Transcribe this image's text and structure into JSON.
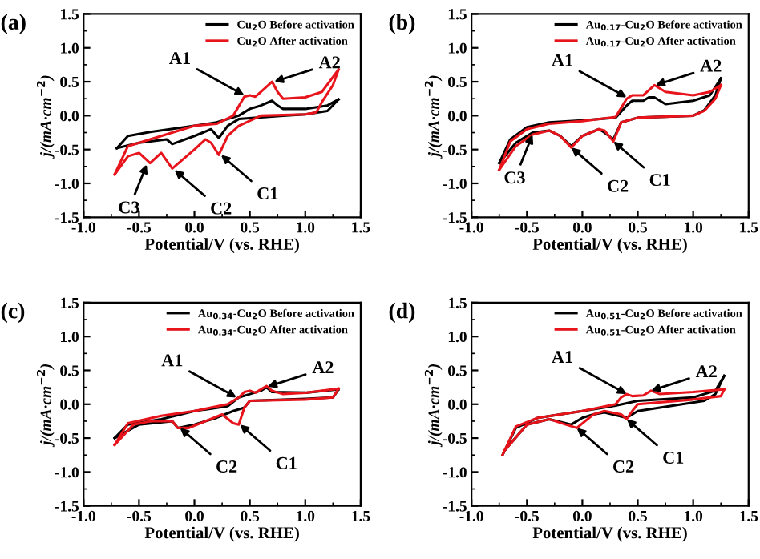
{
  "chart_data": [
    {
      "type": "line",
      "title": "(a)",
      "xlabel": "Potential/V (vs. RHE)",
      "ylabel": "j/(mA·cm$^{−2}$)",
      "xlim": [
        -1.0,
        1.5
      ],
      "ylim": [
        -1.5,
        1.5
      ],
      "xticks": [
        {
          "value": -1.0,
          "label": "-1.0"
        },
        {
          "value": -0.5,
          "label": "-0.5"
        },
        {
          "value": 0.0,
          "label": "0.0"
        },
        {
          "value": 0.5,
          "label": "0.5"
        },
        {
          "value": 1.0,
          "label": "1.0"
        },
        {
          "value": 1.5,
          "label": "1.5"
        }
      ],
      "yticks": [
        {
          "value": -1.5,
          "label": "-1.5"
        },
        {
          "value": -1.0,
          "label": "-1.0"
        },
        {
          "value": -0.5,
          "label": "-0.5"
        },
        {
          "value": 0.0,
          "label": "0.0"
        },
        {
          "value": 0.5,
          "label": "0.5"
        },
        {
          "value": 1.0,
          "label": "1.0"
        },
        {
          "value": 1.5,
          "label": "1.5"
        }
      ],
      "legend": "top right",
      "grid": false,
      "series": [
        {
          "name": "Cu$_{2}$O Before activation",
          "color": "#000000",
          "x": [
            -0.7,
            -0.6,
            -0.4,
            0.0,
            0.2,
            0.4,
            0.5,
            0.6,
            0.7,
            0.75,
            0.8,
            1.0,
            1.2,
            1.3
          ],
          "values": [
            -0.48,
            -0.3,
            -0.24,
            -0.15,
            -0.1,
            0.0,
            0.1,
            0.15,
            0.22,
            0.15,
            0.1,
            0.1,
            0.15,
            0.24
          ]
        },
        {
          "color": "#000000",
          "x": [
            -0.7,
            -0.5,
            -0.25,
            -0.2,
            0.0,
            0.15,
            0.22,
            0.3,
            0.4,
            0.8,
            1.0,
            1.2,
            1.3
          ],
          "values": [
            -0.48,
            -0.4,
            -0.35,
            -0.42,
            -0.3,
            -0.2,
            -0.33,
            -0.15,
            -0.05,
            0.0,
            0.02,
            0.07,
            0.24
          ]
        },
        {
          "name": "Cu$_{2}$O After activation",
          "color": "#e8141c",
          "x": [
            -0.72,
            -0.6,
            -0.4,
            -0.2,
            0.0,
            0.2,
            0.35,
            0.45,
            0.5,
            0.55,
            0.6,
            0.7,
            0.75,
            0.8,
            1.0,
            1.15,
            1.3
          ],
          "values": [
            -0.87,
            -0.45,
            -0.35,
            -0.25,
            -0.15,
            -0.12,
            0.0,
            0.28,
            0.3,
            0.28,
            0.35,
            0.5,
            0.35,
            0.25,
            0.27,
            0.35,
            0.68
          ]
        },
        {
          "color": "#e8141c",
          "x": [
            -0.72,
            -0.6,
            -0.5,
            -0.4,
            -0.3,
            -0.2,
            0.0,
            0.1,
            0.15,
            0.22,
            0.3,
            0.4,
            0.6,
            1.0,
            1.1,
            1.15,
            1.25,
            1.3
          ],
          "values": [
            -0.87,
            -0.6,
            -0.55,
            -0.7,
            -0.55,
            -0.78,
            -0.5,
            -0.35,
            -0.4,
            -0.58,
            -0.3,
            -0.15,
            0.0,
            0.02,
            0.05,
            0.2,
            0.45,
            0.68
          ]
        }
      ],
      "annotations": [
        {
          "text": "A1",
          "x": 0.45,
          "y": 0.3
        },
        {
          "text": "A2",
          "x": 0.72,
          "y": 0.5
        },
        {
          "text": "C1",
          "x": 0.24,
          "y": -0.58
        },
        {
          "text": "C2",
          "x": -0.18,
          "y": -0.8
        },
        {
          "text": "C3",
          "x": -0.43,
          "y": -0.72
        }
      ]
    },
    {
      "type": "line",
      "title": "(b)",
      "xlabel": "Potential/V (vs. RHE)",
      "ylabel": "j/(mA·cm$^{−2}$)",
      "xlim": [
        -1.0,
        1.5
      ],
      "ylim": [
        -1.5,
        1.5
      ],
      "xticks": [
        {
          "value": -1.0,
          "label": "-1.0"
        },
        {
          "value": -0.5,
          "label": "-0.5"
        },
        {
          "value": 0.0,
          "label": "0.0"
        },
        {
          "value": 0.5,
          "label": "0.5"
        },
        {
          "value": 1.0,
          "label": "1.0"
        },
        {
          "value": 1.5,
          "label": "1.5"
        }
      ],
      "yticks": [
        {
          "value": -1.5,
          "label": "-1.5"
        },
        {
          "value": -1.0,
          "label": "-1.0"
        },
        {
          "value": -0.5,
          "label": "-0.5"
        },
        {
          "value": 0.0,
          "label": "0.0"
        },
        {
          "value": 0.5,
          "label": "0.5"
        },
        {
          "value": 1.0,
          "label": "1.0"
        },
        {
          "value": 1.5,
          "label": "1.5"
        }
      ],
      "legend": "top right",
      "grid": false,
      "series": [
        {
          "name": "Au$_{0.17}$-Cu$_{2}$O Before activation",
          "color": "#000000",
          "x": [
            -0.75,
            -0.65,
            -0.5,
            -0.3,
            0.0,
            0.3,
            0.4,
            0.45,
            0.55,
            0.6,
            0.65,
            0.75,
            1.0,
            1.15,
            1.25
          ],
          "values": [
            -0.7,
            -0.35,
            -0.17,
            -0.1,
            -0.07,
            -0.03,
            0.15,
            0.22,
            0.22,
            0.27,
            0.27,
            0.17,
            0.22,
            0.3,
            0.55
          ]
        },
        {
          "color": "#000000",
          "x": [
            -0.75,
            -0.6,
            -0.45,
            -0.3,
            -0.2,
            -0.1,
            0.0,
            0.15,
            0.2,
            0.28,
            0.35,
            0.5,
            1.0,
            1.1,
            1.2,
            1.25
          ],
          "values": [
            -0.7,
            -0.4,
            -0.25,
            -0.22,
            -0.3,
            -0.45,
            -0.3,
            -0.2,
            -0.25,
            -0.35,
            -0.1,
            -0.03,
            0.0,
            0.08,
            0.3,
            0.55
          ]
        },
        {
          "name": "Au$_{0.17}$-Cu$_{2}$O After activation",
          "color": "#e8141c",
          "x": [
            -0.75,
            -0.65,
            -0.5,
            -0.3,
            0.0,
            0.3,
            0.4,
            0.45,
            0.55,
            0.65,
            0.75,
            1.0,
            1.15,
            1.25
          ],
          "values": [
            -0.8,
            -0.38,
            -0.2,
            -0.12,
            -0.08,
            -0.02,
            0.25,
            0.3,
            0.3,
            0.45,
            0.35,
            0.3,
            0.35,
            0.45
          ]
        },
        {
          "color": "#e8141c",
          "x": [
            -0.75,
            -0.6,
            -0.45,
            -0.3,
            -0.2,
            -0.1,
            0.0,
            0.15,
            0.2,
            0.28,
            0.35,
            0.5,
            1.0,
            1.1,
            1.2,
            1.25
          ],
          "values": [
            -0.8,
            -0.45,
            -0.28,
            -0.22,
            -0.3,
            -0.47,
            -0.3,
            -0.2,
            -0.22,
            -0.38,
            -0.1,
            -0.03,
            0.0,
            0.07,
            0.25,
            0.45
          ]
        }
      ],
      "annotations": [
        {
          "text": "A1",
          "x": 0.4,
          "y": 0.27
        },
        {
          "text": "A2",
          "x": 0.66,
          "y": 0.45
        },
        {
          "text": "C1",
          "x": 0.28,
          "y": -0.38
        },
        {
          "text": "C2",
          "x": -0.1,
          "y": -0.47
        },
        {
          "text": "C3",
          "x": -0.45,
          "y": -0.28
        }
      ]
    },
    {
      "type": "line",
      "title": "(c)",
      "xlabel": "Potential/V (vs. RHE)",
      "ylabel": "j/(mA·cm$^{−2}$)",
      "xlim": [
        -1.0,
        1.5
      ],
      "ylim": [
        -1.5,
        1.5
      ],
      "xticks": [
        {
          "value": -1.0,
          "label": "-1.0"
        },
        {
          "value": -0.5,
          "label": "-0.5"
        },
        {
          "value": 0.0,
          "label": "0.0"
        },
        {
          "value": 0.5,
          "label": "0.5"
        },
        {
          "value": 1.0,
          "label": "1.0"
        },
        {
          "value": 1.5,
          "label": "1.5"
        }
      ],
      "yticks": [
        {
          "value": -1.5,
          "label": "-1.5"
        },
        {
          "value": -1.0,
          "label": "-1.0"
        },
        {
          "value": -0.5,
          "label": "-0.5"
        },
        {
          "value": 0.0,
          "label": "0.0"
        },
        {
          "value": 0.5,
          "label": "0.5"
        },
        {
          "value": 1.0,
          "label": "1.0"
        },
        {
          "value": 1.5,
          "label": "1.5"
        }
      ],
      "legend": "top right",
      "grid": false,
      "series": [
        {
          "name": "Au$_{0.34}$-Cu$_{2}$O Before activation",
          "color": "#000000",
          "x": [
            -0.72,
            -0.6,
            -0.3,
            0.0,
            0.3,
            0.4,
            0.5,
            0.6,
            0.65,
            0.7,
            1.0,
            1.3
          ],
          "values": [
            -0.5,
            -0.3,
            -0.22,
            -0.1,
            -0.03,
            0.1,
            0.15,
            0.2,
            0.25,
            0.18,
            0.17,
            0.22
          ]
        },
        {
          "color": "#000000",
          "x": [
            -0.72,
            -0.5,
            -0.2,
            -0.15,
            0.0,
            0.2,
            0.35,
            0.45,
            0.5,
            1.0,
            1.25,
            1.3
          ],
          "values": [
            -0.5,
            -0.3,
            -0.25,
            -0.35,
            -0.3,
            -0.2,
            -0.1,
            -0.05,
            0.05,
            0.08,
            0.1,
            0.22
          ]
        },
        {
          "name": "Au$_{0.34}$-Cu$_{2}$O After activation",
          "color": "#e8141c",
          "x": [
            -0.72,
            -0.6,
            -0.3,
            0.0,
            0.3,
            0.4,
            0.45,
            0.5,
            0.55,
            0.65,
            0.7,
            0.8,
            1.0,
            1.3
          ],
          "values": [
            -0.6,
            -0.28,
            -0.17,
            -0.1,
            0.0,
            0.1,
            0.18,
            0.2,
            0.17,
            0.27,
            0.2,
            0.15,
            0.17,
            0.23
          ]
        },
        {
          "color": "#e8141c",
          "x": [
            -0.72,
            -0.55,
            -0.4,
            -0.2,
            -0.15,
            -0.05,
            0.1,
            0.25,
            0.35,
            0.4,
            0.45,
            0.5,
            1.0,
            1.25,
            1.3
          ],
          "values": [
            -0.6,
            -0.3,
            -0.25,
            -0.25,
            -0.35,
            -0.35,
            -0.25,
            -0.15,
            -0.28,
            -0.3,
            -0.05,
            0.05,
            0.07,
            0.1,
            0.23
          ]
        }
      ],
      "annotations": [
        {
          "text": "A1",
          "x": 0.38,
          "y": 0.1
        },
        {
          "text": "A2",
          "x": 0.66,
          "y": 0.26
        },
        {
          "text": "C1",
          "x": 0.41,
          "y": -0.3
        },
        {
          "text": "C2",
          "x": -0.13,
          "y": -0.35
        }
      ]
    },
    {
      "type": "line",
      "title": "(d)",
      "xlabel": "Potential/V (vs. RHE)",
      "ylabel": "j/(mA·cm$^{−2}$)",
      "xlim": [
        -1.0,
        1.5
      ],
      "ylim": [
        -1.5,
        1.5
      ],
      "xticks": [
        {
          "value": -1.0,
          "label": "-1.0"
        },
        {
          "value": -0.5,
          "label": "-0.5"
        },
        {
          "value": 0.0,
          "label": "0.0"
        },
        {
          "value": 0.5,
          "label": "0.5"
        },
        {
          "value": 1.0,
          "label": "1.0"
        },
        {
          "value": 1.5,
          "label": "1.5"
        }
      ],
      "yticks": [
        {
          "value": -1.5,
          "label": "-1.5"
        },
        {
          "value": -1.0,
          "label": "-1.0"
        },
        {
          "value": -0.5,
          "label": "-0.5"
        },
        {
          "value": 0.0,
          "label": "0.0"
        },
        {
          "value": 0.5,
          "label": "0.5"
        },
        {
          "value": 1.0,
          "label": "1.0"
        },
        {
          "value": 1.5,
          "label": "1.5"
        }
      ],
      "legend": "top right",
      "grid": false,
      "series": [
        {
          "name": "Au$_{0.51}$-Cu$_{2}$O Before activation",
          "color": "#000000",
          "x": [
            -0.72,
            -0.6,
            -0.4,
            0.0,
            0.3,
            0.5,
            1.0,
            1.2,
            1.28
          ],
          "values": [
            -0.75,
            -0.35,
            -0.2,
            -0.1,
            -0.02,
            0.05,
            0.1,
            0.2,
            0.42
          ]
        },
        {
          "color": "#000000",
          "x": [
            -0.7,
            -0.5,
            -0.3,
            -0.1,
            0.0,
            0.1,
            0.2,
            0.4,
            0.5,
            1.1,
            1.2,
            1.28
          ],
          "values": [
            -0.68,
            -0.3,
            -0.22,
            -0.3,
            -0.2,
            -0.15,
            -0.12,
            -0.2,
            -0.1,
            0.05,
            0.15,
            0.42
          ]
        },
        {
          "name": "Au$_{0.51}$-Cu$_{2}$O After activation",
          "color": "#e8141c",
          "x": [
            -0.72,
            -0.6,
            -0.4,
            0.0,
            0.3,
            0.35,
            0.4,
            0.45,
            0.55,
            0.62,
            0.7,
            1.0,
            1.28
          ],
          "values": [
            -0.75,
            -0.33,
            -0.2,
            -0.1,
            0.0,
            0.1,
            0.15,
            0.12,
            0.13,
            0.2,
            0.15,
            0.18,
            0.22
          ]
        },
        {
          "color": "#e8141c",
          "x": [
            -0.7,
            -0.5,
            -0.3,
            -0.15,
            -0.05,
            0.1,
            0.2,
            0.35,
            0.4,
            0.45,
            0.5,
            1.0,
            1.25,
            1.28
          ],
          "values": [
            -0.68,
            -0.3,
            -0.22,
            -0.3,
            -0.35,
            -0.15,
            -0.1,
            -0.15,
            -0.22,
            -0.1,
            0.0,
            0.07,
            0.12,
            0.22
          ]
        }
      ],
      "annotations": [
        {
          "text": "A1",
          "x": 0.4,
          "y": 0.15
        },
        {
          "text": "A2",
          "x": 0.62,
          "y": 0.2
        },
        {
          "text": "C1",
          "x": 0.4,
          "y": -0.22
        },
        {
          "text": "C2",
          "x": -0.05,
          "y": -0.35
        }
      ]
    }
  ]
}
